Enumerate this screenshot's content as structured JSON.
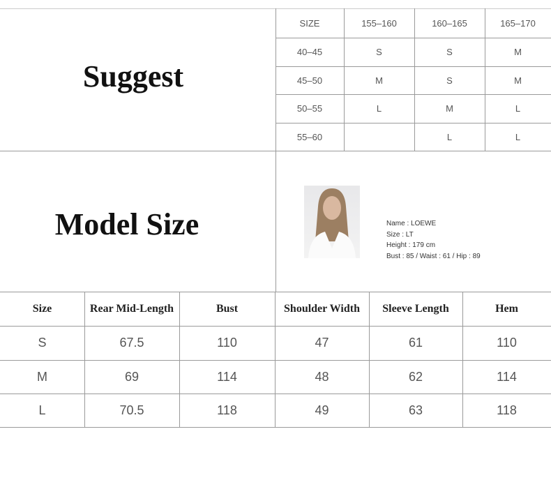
{
  "suggest": {
    "title": "Suggest",
    "header": [
      "SIZE",
      "155–160",
      "160–165",
      "165–170"
    ],
    "rows": [
      [
        "40–45",
        "S",
        "S",
        "M"
      ],
      [
        "45–50",
        "M",
        "S",
        "M"
      ],
      [
        "50–55",
        "L",
        "M",
        "L"
      ],
      [
        "55–60",
        "",
        "L",
        "L"
      ]
    ]
  },
  "model": {
    "title": "Model Size",
    "name": "Name : LOEWE",
    "size": "Size : LT",
    "height": "Height : 179  cm",
    "measurements": "Bust : 85 / Waist : 61 / Hip : 89"
  },
  "measure": {
    "header": [
      "Size",
      "Rear Mid-Length",
      "Bust",
      "Shoulder Width",
      "Sleeve Length",
      "Hem"
    ],
    "rows": [
      [
        "S",
        "67.5",
        "110",
        "47",
        "61",
        "110"
      ],
      [
        "M",
        "69",
        "114",
        "48",
        "62",
        "114"
      ],
      [
        "L",
        "70.5",
        "118",
        "49",
        "63",
        "118"
      ]
    ]
  }
}
